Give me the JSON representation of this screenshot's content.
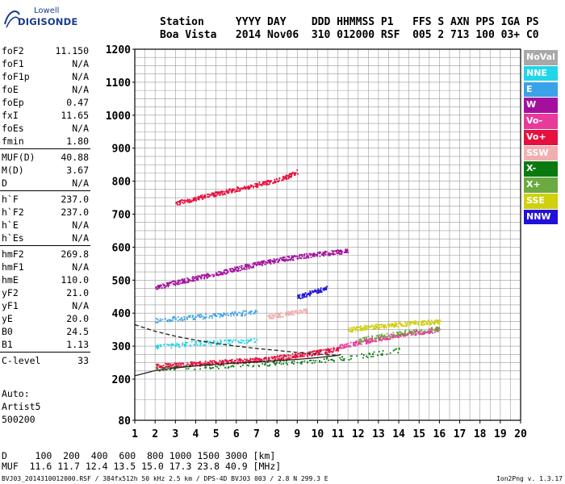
{
  "logo": {
    "top": "Lowell",
    "main": "DIGISONDE"
  },
  "header": {
    "labels": "Station     YYYY DAY    DDD HHMMSS P1   FFS S AXN PPS IGA PS",
    "values": "Boa Vista   2014 Nov06  310 012000 RSF  005 2 713 100 03+ C0"
  },
  "params": [
    {
      "name": "foF2",
      "value": "11.150"
    },
    {
      "name": "foF1",
      "value": "N/A"
    },
    {
      "name": "foF1p",
      "value": "N/A"
    },
    {
      "name": "foE",
      "value": "N/A"
    },
    {
      "name": "foEp",
      "value": "0.47"
    },
    {
      "name": "fxI",
      "value": "11.65"
    },
    {
      "name": "foEs",
      "value": "N/A"
    },
    {
      "name": "fmin",
      "value": "1.80"
    },
    {
      "name": "MUF(D)",
      "value": "40.88"
    },
    {
      "name": "M(D)",
      "value": "3.67"
    },
    {
      "name": "D",
      "value": "N/A"
    },
    {
      "name": "h`F",
      "value": "237.0"
    },
    {
      "name": "h`F2",
      "value": "237.0"
    },
    {
      "name": "h`E",
      "value": "N/A"
    },
    {
      "name": "h`Es",
      "value": "N/A"
    },
    {
      "name": "hmF2",
      "value": "269.8"
    },
    {
      "name": "hmF1",
      "value": "N/A"
    },
    {
      "name": "hmE",
      "value": "110.0"
    },
    {
      "name": "yF2",
      "value": "21.0"
    },
    {
      "name": "yF1",
      "value": "N/A"
    },
    {
      "name": "yE",
      "value": "20.0"
    },
    {
      "name": "B0",
      "value": "24.5"
    },
    {
      "name": "B1",
      "value": "1.13"
    },
    {
      "name": "C-level",
      "value": "33"
    }
  ],
  "auto": {
    "line1": "Auto:",
    "line2": "Artist5",
    "line3": "500200"
  },
  "legend": [
    {
      "label": "NoVal",
      "color": "#a8a8a8"
    },
    {
      "label": "NNE",
      "color": "#22d6e8"
    },
    {
      "label": "E",
      "color": "#3aa2e8"
    },
    {
      "label": "W",
      "color": "#a4109e"
    },
    {
      "label": "Vo-",
      "color": "#e83a9a"
    },
    {
      "label": "Vo+",
      "color": "#e6103e"
    },
    {
      "label": "SSW",
      "color": "#f0b0b0"
    },
    {
      "label": "X-",
      "color": "#0a7a10"
    },
    {
      "label": "X+",
      "color": "#6aaa40"
    },
    {
      "label": "SSE",
      "color": "#d0d010"
    },
    {
      "label": "NNW",
      "color": "#2010d8"
    }
  ],
  "footer": {
    "d_line": "D     100  200  400  600  800 1000 1500 3000 [km]",
    "muf_line": "MUF  11.6 11.7 12.4 13.5 15.0 17.3 23.8 40.9 [MHz]",
    "info": "BVJ03_2014310012000.RSF / 384fx512h 50 kHz 2.5 km / DPS-4D BVJ03 003 / 2.8 N 299.3 E",
    "version": "Ion2Png v. 1.3.17"
  },
  "chart_data": {
    "type": "scatter",
    "xlim": [
      1,
      20
    ],
    "ylim": [
      80,
      1200
    ],
    "xticks": [
      "1",
      "2",
      "3",
      "4",
      "5",
      "6",
      "7",
      "8",
      "9",
      "10",
      "11",
      "12",
      "13",
      "14",
      "15",
      "16",
      "17",
      "18",
      "19",
      "20"
    ],
    "yticks": [
      "80",
      "200",
      "300",
      "400",
      "500",
      "600",
      "700",
      "800",
      "900",
      "1000",
      "1100",
      "1200"
    ],
    "grid": true,
    "legend_position": "right",
    "traces": [
      {
        "name": "Vo+",
        "color": "#e6103e",
        "x": [
          2.0,
          2.5,
          3.0,
          3.5,
          4.0,
          4.5,
          5.0,
          5.5,
          6.0,
          6.5,
          7.0,
          7.5,
          8.0,
          8.5,
          9.0,
          9.5,
          10.0,
          10.5,
          11.0
        ],
        "y": [
          240,
          242,
          244,
          246,
          248,
          250,
          252,
          254,
          256,
          258,
          260,
          262,
          266,
          270,
          274,
          278,
          283,
          288,
          294
        ]
      },
      {
        "name": "Vo-",
        "color": "#e83a9a",
        "x": [
          11.0,
          11.5,
          12.0,
          12.5,
          13.0,
          13.5,
          14.0,
          14.5,
          15.0,
          15.5,
          16.0
        ],
        "y": [
          300,
          306,
          312,
          318,
          324,
          330,
          336,
          340,
          344,
          348,
          352
        ]
      },
      {
        "name": "W",
        "color": "#a4109e",
        "x": [
          2.0,
          2.5,
          3.0,
          3.5,
          4.0,
          4.5,
          5.0,
          5.5,
          6.0,
          6.5,
          7.0,
          7.5,
          8.0,
          8.5,
          9.0,
          9.5,
          10.0,
          10.5,
          11.0,
          11.5
        ],
        "y": [
          480,
          487,
          494,
          501,
          508,
          515,
          522,
          529,
          536,
          543,
          550,
          556,
          562,
          567,
          572,
          576,
          580,
          584,
          587,
          590
        ]
      },
      {
        "name": "Vo+",
        "color": "#e6103e",
        "x": [
          3.0,
          3.5,
          4.0,
          4.5,
          5.0,
          5.5,
          6.0,
          6.5,
          7.0,
          7.5,
          8.0,
          8.5,
          9.0
        ],
        "y": [
          735,
          742,
          749,
          756,
          763,
          770,
          777,
          784,
          791,
          798,
          805,
          815,
          830
        ]
      },
      {
        "name": "NNE",
        "color": "#22d6e8",
        "x": [
          2.0,
          3.0,
          4.0,
          5.0,
          6.0,
          7.0
        ],
        "y": [
          300,
          305,
          310,
          313,
          316,
          320
        ]
      },
      {
        "name": "E",
        "color": "#3aa2e8",
        "x": [
          2.0,
          3.0,
          4.0,
          5.0,
          6.0,
          7.0
        ],
        "y": [
          380,
          385,
          390,
          395,
          400,
          405
        ]
      },
      {
        "name": "SSW",
        "color": "#f0b0b0",
        "x": [
          7.5,
          8.0,
          8.5,
          9.0,
          9.5
        ],
        "y": [
          390,
          395,
          400,
          405,
          410
        ]
      },
      {
        "name": "NNW",
        "color": "#2010d8",
        "x": [
          9.0,
          9.5,
          10.0,
          10.5
        ],
        "y": [
          450,
          460,
          470,
          480
        ]
      },
      {
        "name": "SSE",
        "color": "#d0d010",
        "x": [
          11.5,
          12.0,
          12.5,
          13.0,
          13.5,
          14.0,
          14.5,
          15.0,
          15.5,
          16.0
        ],
        "y": [
          350,
          355,
          360,
          362,
          365,
          368,
          370,
          372,
          374,
          376
        ]
      },
      {
        "name": "X-",
        "color": "#0a7a10",
        "x": [
          2.0,
          4.0,
          6.0,
          8.0,
          10.0,
          12.0,
          14.0
        ],
        "y": [
          232,
          238,
          244,
          250,
          258,
          270,
          290
        ]
      },
      {
        "name": "X+",
        "color": "#6aaa40",
        "x": [
          12.0,
          13.0,
          14.0,
          15.0,
          16.0
        ],
        "y": [
          320,
          330,
          340,
          348,
          356
        ]
      }
    ],
    "profile_solid": {
      "x": [
        1.0,
        2.0,
        3.0,
        4.0,
        5.0,
        6.0,
        7.0,
        8.0,
        9.0,
        10.0,
        11.0,
        11.15
      ],
      "y": [
        210,
        226,
        234,
        240,
        245,
        249,
        252,
        256,
        260,
        265,
        272,
        275
      ]
    },
    "profile_dashed": {
      "x": [
        1.0,
        2.0,
        3.0,
        4.0,
        5.0,
        6.0,
        7.0,
        8.0,
        9.0,
        10.0,
        11.0
      ],
      "y": [
        365,
        345,
        330,
        318,
        308,
        300,
        293,
        287,
        281,
        276,
        272
      ]
    }
  }
}
